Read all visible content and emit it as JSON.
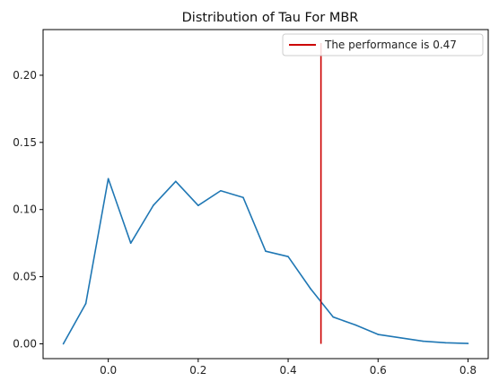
{
  "chart_data": {
    "type": "line",
    "title": "Distribution of Tau For MBR",
    "xlabel": "",
    "ylabel": "",
    "xlim": [
      -0.145,
      0.845
    ],
    "ylim": [
      -0.011,
      0.234
    ],
    "xticks": [
      0.0,
      0.2,
      0.4,
      0.6,
      0.8
    ],
    "xtick_labels": [
      "0.0",
      "0.2",
      "0.4",
      "0.6",
      "0.8"
    ],
    "yticks": [
      0.0,
      0.05,
      0.1,
      0.15,
      0.2
    ],
    "ytick_labels": [
      "0.00",
      "0.05",
      "0.10",
      "0.15",
      "0.20"
    ],
    "grid": false,
    "legend_position": "top-right",
    "series": [
      {
        "x": [
          -0.1,
          -0.05,
          0.0,
          0.05,
          0.1,
          0.15,
          0.2,
          0.25,
          0.3,
          0.35,
          0.4,
          0.45,
          0.5,
          0.55,
          0.6,
          0.65,
          0.7,
          0.75,
          0.8
        ],
        "values": [
          0.0,
          0.03,
          0.123,
          0.075,
          0.103,
          0.121,
          0.103,
          0.114,
          0.109,
          0.069,
          0.065,
          0.041,
          0.02,
          0.014,
          0.007,
          0.0045,
          0.002,
          0.0008,
          0.0003
        ],
        "color": "#1f77b4"
      }
    ],
    "vline": {
      "name": "The performance is 0.47",
      "x": 0.473,
      "y_range": [
        0.0,
        0.224
      ],
      "color": "#cc0000"
    }
  }
}
